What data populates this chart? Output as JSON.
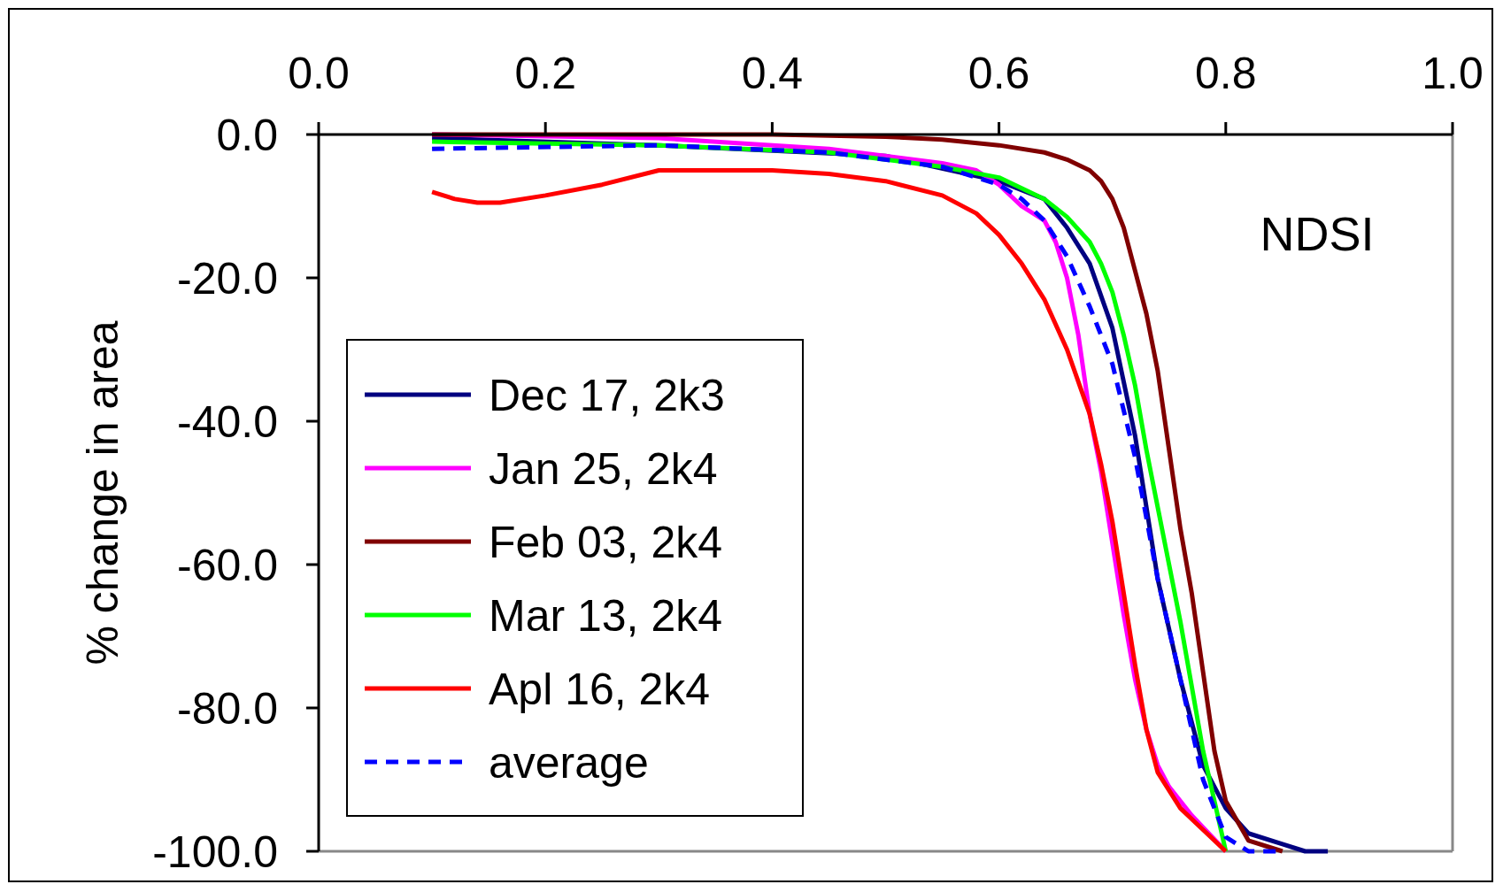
{
  "chart_data": {
    "type": "line",
    "ylabel": "% change in area",
    "annotations": [
      "NDSI"
    ],
    "xlim": [
      0,
      1
    ],
    "xticks": [
      {
        "value": 0,
        "label": "0.0"
      },
      0.2,
      0.4,
      0.6,
      0.8,
      {
        "value": 1,
        "label": "1.0"
      }
    ],
    "ylim": [
      -100,
      0
    ],
    "yticks": [
      {
        "value": -100,
        "label": "-100.0"
      },
      {
        "value": -80,
        "label": "-80.0"
      },
      {
        "value": -60,
        "label": "-60.0"
      },
      {
        "value": -40,
        "label": "-40.0"
      },
      {
        "value": -20,
        "label": "-20.0"
      },
      {
        "value": 0,
        "label": "0.0"
      }
    ],
    "grid": false,
    "legend": "bottom left",
    "series": [
      {
        "name": "Dec 17, 2k3",
        "color": "#000080",
        "x": [
          0.1,
          0.3,
          0.5,
          0.6,
          0.64,
          0.66,
          0.68,
          0.7,
          0.72,
          0.74,
          0.76,
          0.78,
          0.8,
          0.82,
          0.85,
          0.87,
          0.89
        ],
        "values": [
          -0.5,
          -1.5,
          -3,
          -6.5,
          -9,
          -13,
          -18,
          -27,
          -42,
          -62,
          -76,
          -88,
          -94,
          -97.5,
          -99,
          -100,
          -100
        ]
      },
      {
        "name": "Jan 25, 2k4",
        "color": "#ff00ff",
        "x": [
          0.1,
          0.3,
          0.45,
          0.55,
          0.58,
          0.6,
          0.62,
          0.64,
          0.65,
          0.66,
          0.67,
          0.68,
          0.69,
          0.7,
          0.71,
          0.72,
          0.73,
          0.74,
          0.75,
          0.77,
          0.8
        ],
        "values": [
          0,
          -0.5,
          -2,
          -4,
          -5,
          -7,
          -10,
          -12,
          -15,
          -20,
          -28,
          -39,
          -47,
          -57,
          -67,
          -76,
          -83,
          -88,
          -91,
          -95,
          -100
        ]
      },
      {
        "name": "Feb 03, 2k4",
        "color": "#800000",
        "x": [
          0.1,
          0.4,
          0.5,
          0.55,
          0.6,
          0.64,
          0.66,
          0.68,
          0.69,
          0.7,
          0.71,
          0.72,
          0.73,
          0.74,
          0.75,
          0.76,
          0.77,
          0.78,
          0.79,
          0.8,
          0.82,
          0.85
        ],
        "values": [
          0,
          0,
          -0.3,
          -0.7,
          -1.5,
          -2.5,
          -3.5,
          -5,
          -6.5,
          -9,
          -13,
          -19,
          -25,
          -33,
          -44,
          -55,
          -64,
          -75,
          -86,
          -93,
          -98.5,
          -100
        ]
      },
      {
        "name": "Mar 13, 2k4",
        "color": "#00ff00",
        "x": [
          0.1,
          0.3,
          0.45,
          0.55,
          0.6,
          0.64,
          0.66,
          0.68,
          0.69,
          0.7,
          0.71,
          0.72,
          0.73,
          0.74,
          0.75,
          0.76,
          0.77,
          0.78,
          0.79,
          0.8
        ],
        "values": [
          -1,
          -1.5,
          -2.5,
          -4.5,
          -6,
          -9,
          -11.5,
          -15,
          -18,
          -22,
          -28,
          -35,
          -44,
          -52,
          -60,
          -68,
          -77,
          -86,
          -93,
          -100
        ]
      },
      {
        "name": "Apl 16, 2k4",
        "color": "#ff0000",
        "x": [
          0.1,
          0.12,
          0.14,
          0.16,
          0.2,
          0.25,
          0.3,
          0.4,
          0.45,
          0.5,
          0.55,
          0.58,
          0.6,
          0.62,
          0.64,
          0.66,
          0.68,
          0.69,
          0.7,
          0.71,
          0.72,
          0.73,
          0.74,
          0.76,
          0.78,
          0.8
        ],
        "values": [
          -8,
          -9,
          -9.5,
          -9.5,
          -8.5,
          -7,
          -5,
          -5,
          -5.5,
          -6.5,
          -8.5,
          -11,
          -14,
          -18,
          -23,
          -30,
          -39,
          -46,
          -54,
          -64,
          -74,
          -83,
          -89,
          -94,
          -97,
          -100
        ]
      },
      {
        "name": "average",
        "color": "#0000ff",
        "line_style": "dashed",
        "x": [
          0.1,
          0.3,
          0.45,
          0.55,
          0.6,
          0.62,
          0.64,
          0.66,
          0.68,
          0.7,
          0.72,
          0.74,
          0.76,
          0.78,
          0.8,
          0.82,
          0.85
        ],
        "values": [
          -2,
          -1.5,
          -2.5,
          -4.5,
          -7,
          -9,
          -12,
          -17,
          -24,
          -32,
          -45,
          -62,
          -76,
          -90,
          -98,
          -100,
          -100
        ]
      }
    ]
  }
}
